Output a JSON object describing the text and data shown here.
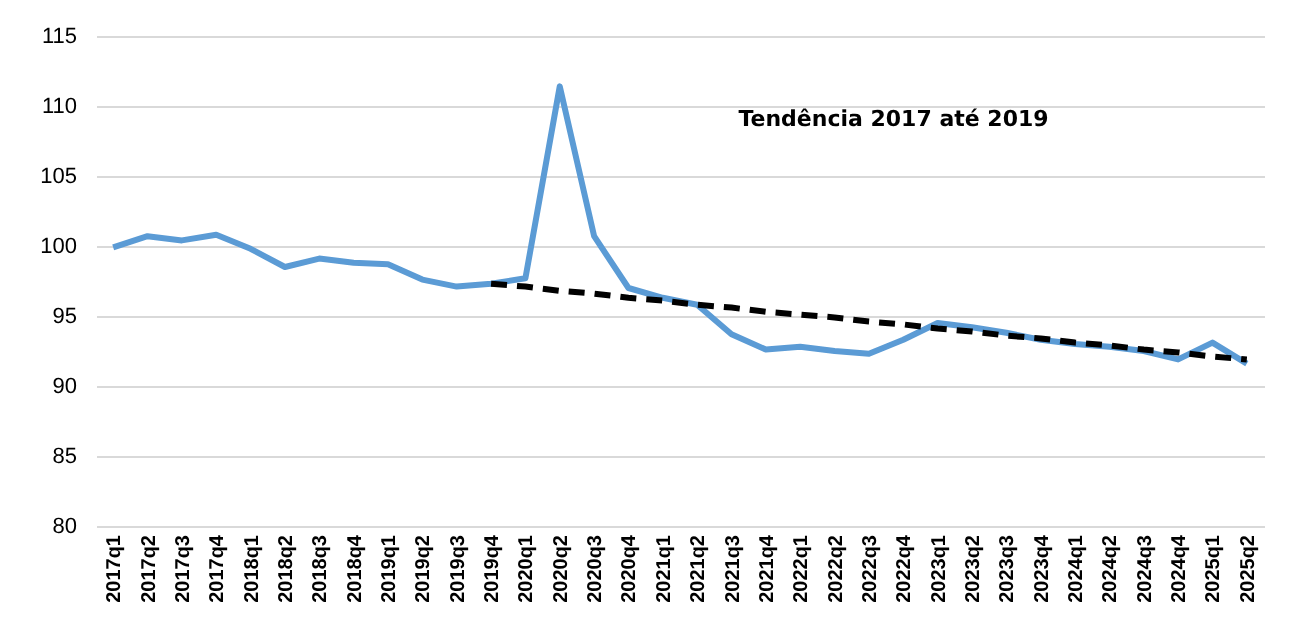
{
  "chart_data": {
    "type": "line",
    "annotations": [
      "Tendência 2017 até 2019"
    ],
    "categories": [
      "2017q1",
      "2017q2",
      "2017q3",
      "2017q4",
      "2018q1",
      "2018q2",
      "2018q3",
      "2018q4",
      "2019q1",
      "2019q2",
      "2019q3",
      "2019q4",
      "2020q1",
      "2020q2",
      "2020q3",
      "2020q4",
      "2021q1",
      "2021q2",
      "2021q3",
      "2021q4",
      "2022q1",
      "2022q2",
      "2022q3",
      "2022q4",
      "2023q1",
      "2023q2",
      "2023q3",
      "2023q4",
      "2024q1",
      "2024q2",
      "2024q3",
      "2024q4",
      "2025q1",
      "2025q2"
    ],
    "series": [
      {
        "color": "#5b9bd5",
        "line_style": "solid",
        "values": [
          99.9,
          100.7,
          100.4,
          100.8,
          99.8,
          98.5,
          99.1,
          98.8,
          98.7,
          97.6,
          97.1,
          97.3,
          97.7,
          111.4,
          100.7,
          97.0,
          96.3,
          95.8,
          93.7,
          92.6,
          92.8,
          92.5,
          92.3,
          93.3,
          94.5,
          94.2,
          93.8,
          93.3,
          93.0,
          92.8,
          92.5,
          91.9,
          93.1,
          91.6
        ]
      },
      {
        "color": "#000000",
        "line_style": "dashed",
        "values": [
          null,
          null,
          null,
          null,
          null,
          null,
          null,
          null,
          null,
          null,
          null,
          97.3,
          97.1,
          96.8,
          96.6,
          96.3,
          96.1,
          95.8,
          95.6,
          95.3,
          95.1,
          94.9,
          94.6,
          94.4,
          94.1,
          93.9,
          93.6,
          93.4,
          93.1,
          92.9,
          92.6,
          92.4,
          92.1,
          91.9
        ]
      }
    ],
    "ylim": [
      80,
      115
    ],
    "yticks": [
      80,
      85,
      90,
      95,
      100,
      105,
      110,
      115
    ],
    "grid": "y",
    "marker": "none"
  }
}
